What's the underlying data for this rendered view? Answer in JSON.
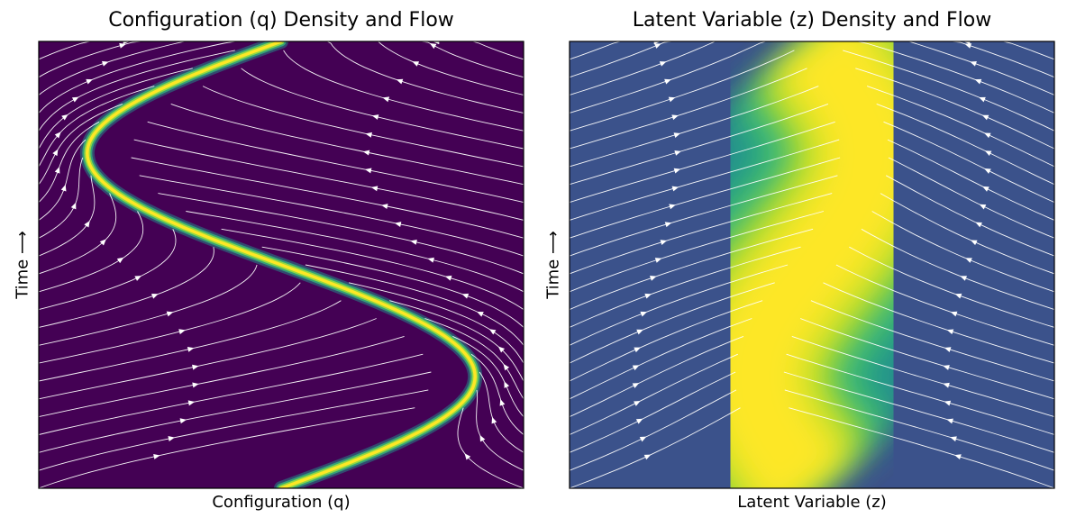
{
  "chart_data": [
    {
      "type": "heatmap",
      "title": "Configuration (q) Density and Flow",
      "xlabel": "Configuration (q)",
      "ylabel": "Time ⟶",
      "colormap": "viridis",
      "x_ticks": [],
      "y_ticks": [],
      "density_ridge": {
        "description_points_t": [
          0.0,
          0.25,
          0.5,
          0.75,
          1.0
        ],
        "center_q": [
          0.5,
          0.88,
          0.5,
          0.12,
          0.5
        ],
        "width": "narrow"
      },
      "streamline_color": "#ffffff"
    },
    {
      "type": "heatmap",
      "title": "Latent Variable (z) Density and Flow",
      "xlabel": "Latent Variable (z)",
      "ylabel": "Time ⟶",
      "colormap": "viridis",
      "x_ticks": [],
      "y_ticks": [],
      "density_ridge": {
        "description_points_t": [
          0.0,
          0.25,
          0.5,
          0.75,
          1.0
        ],
        "center_z": [
          0.5,
          0.6,
          0.5,
          0.4,
          0.5
        ],
        "width": "broad"
      },
      "streamline_color": "#ffffff"
    }
  ]
}
